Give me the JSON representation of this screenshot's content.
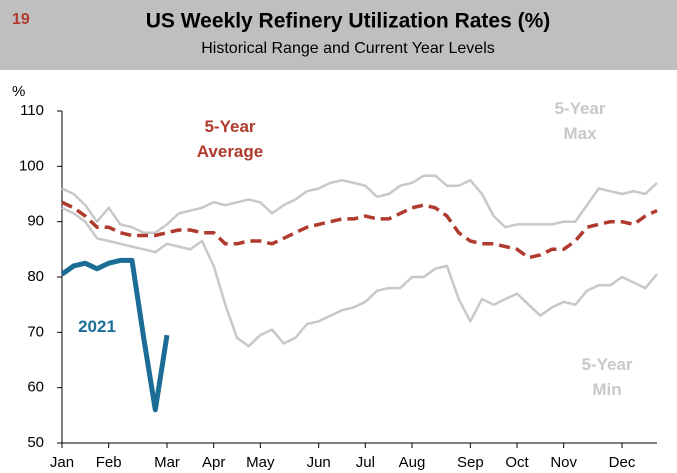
{
  "header": {
    "number": "19"
  },
  "chart_data": {
    "type": "line",
    "title": "US Weekly Refinery Utilization Rates (%)",
    "subtitle": "Historical Range and Current Year Levels",
    "y_label": "%",
    "categories": [
      "Jan",
      null,
      null,
      null,
      "Feb",
      null,
      null,
      null,
      null,
      "Mar",
      null,
      null,
      null,
      "Apr",
      null,
      null,
      null,
      "May",
      null,
      null,
      null,
      null,
      "Jun",
      null,
      null,
      null,
      "Jul",
      null,
      null,
      null,
      "Aug",
      null,
      null,
      null,
      null,
      "Sep",
      null,
      null,
      null,
      "Oct",
      null,
      null,
      null,
      "Nov",
      null,
      null,
      null,
      null,
      "Dec",
      null,
      null,
      null
    ],
    "series": [
      {
        "name": "5-Year Max",
        "color": "#c8c8c8",
        "dash": false,
        "width": 2.5,
        "values": [
          96,
          95,
          93,
          90,
          92.5,
          89.5,
          89,
          88,
          88,
          89.5,
          91.5,
          92,
          92.5,
          93.5,
          93,
          93.5,
          94,
          93.5,
          91.5,
          93,
          94,
          95.5,
          96,
          97,
          97.5,
          97,
          96.5,
          94.5,
          95,
          96.5,
          97,
          98.3,
          98.3,
          96.5,
          96.5,
          97.5,
          95,
          91,
          89,
          89.5,
          89.5,
          89.5,
          89.5,
          90,
          90,
          93,
          96,
          95.5,
          95,
          95.5,
          95,
          97
        ]
      },
      {
        "name": "5-Year Min",
        "color": "#c8c8c8",
        "dash": false,
        "width": 2.5,
        "values": [
          92.5,
          91.5,
          90,
          87,
          86.5,
          86,
          85.5,
          85,
          84.5,
          86,
          85.5,
          85,
          86.5,
          82,
          75,
          69,
          67.5,
          69.5,
          70.5,
          68,
          69,
          71.5,
          72,
          73,
          74,
          74.5,
          75.5,
          77.5,
          78,
          78,
          80,
          80,
          81.5,
          82,
          76,
          72,
          76,
          75,
          76,
          77,
          75,
          73,
          74.5,
          75.5,
          75,
          77.5,
          78.5,
          78.5,
          80,
          79,
          78,
          80.5
        ]
      },
      {
        "name": "5-Year Average",
        "color": "#b03a2e",
        "dash": true,
        "width": 3.5,
        "values": [
          93.5,
          92.5,
          91,
          89,
          89,
          88,
          87.5,
          87.5,
          87.5,
          88,
          88.5,
          88.5,
          88,
          88,
          86,
          86,
          86.5,
          86.5,
          86,
          87,
          88,
          89,
          89.5,
          90,
          90.5,
          90.5,
          91,
          90.5,
          90.5,
          91.5,
          92.5,
          93,
          92.5,
          91,
          88,
          86.5,
          86,
          86,
          85.5,
          85,
          83.5,
          84,
          85,
          85,
          86.5,
          89,
          89.5,
          90,
          90,
          89.5,
          91,
          92
        ]
      },
      {
        "name": "2021",
        "color": "#1b6d96",
        "dash": false,
        "width": 5,
        "values": [
          80.5,
          82,
          82.5,
          81.5,
          82.5,
          83,
          83,
          69,
          56,
          69.5,
          null,
          null,
          null,
          null,
          null,
          null,
          null,
          null,
          null,
          null,
          null,
          null,
          null,
          null,
          null,
          null,
          null,
          null,
          null,
          null,
          null,
          null,
          null,
          null,
          null,
          null,
          null,
          null,
          null,
          null,
          null,
          null,
          null,
          null,
          null,
          null,
          null,
          null,
          null,
          null,
          null,
          null
        ]
      }
    ],
    "annotations": [
      {
        "lines": [
          "5-Year",
          "Average"
        ],
        "color": "#b03a2e"
      },
      {
        "lines": [
          "5-Year",
          "Max"
        ],
        "color": "#c8c8c8"
      },
      {
        "lines": [
          "5-Year",
          "Min"
        ],
        "color": "#c8c8c8"
      },
      {
        "lines": [
          "2021"
        ],
        "color": "#1b6d96"
      }
    ],
    "ylim": [
      50,
      110
    ],
    "yticks": [
      50,
      60,
      70,
      80,
      90,
      100,
      110
    ],
    "grid": false
  }
}
